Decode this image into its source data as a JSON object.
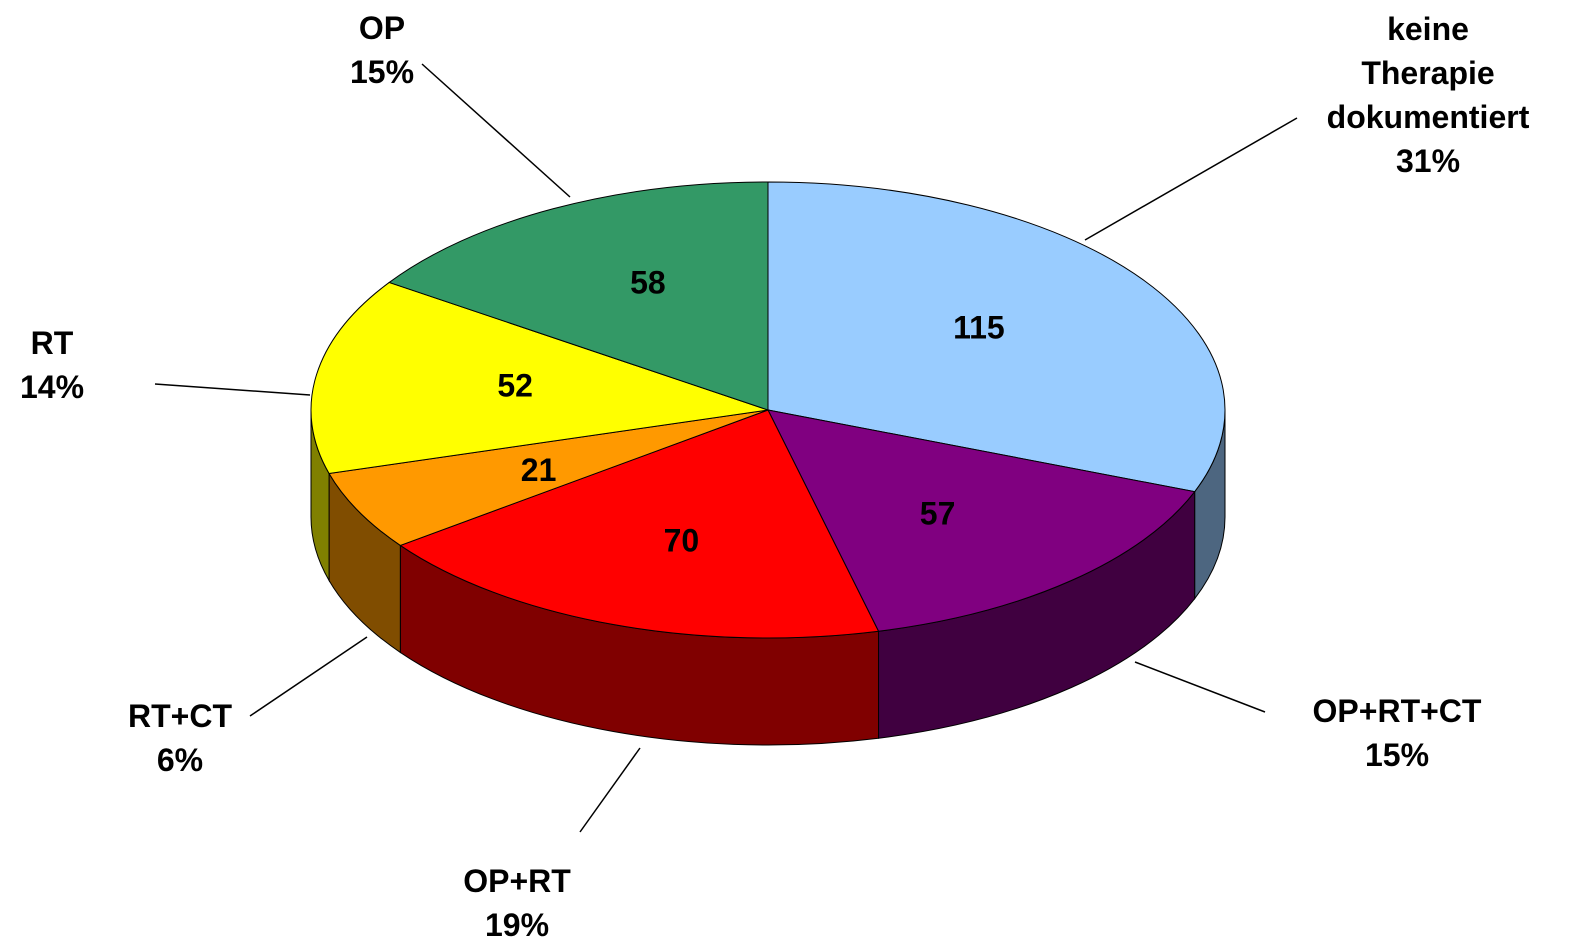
{
  "chart_data": {
    "type": "pie3d",
    "categories": [
      "keine Therapie dokumentiert",
      "OP+RT+CT",
      "OP+RT",
      "RT+CT",
      "RT",
      "OP"
    ],
    "values": [
      115,
      57,
      70,
      21,
      52,
      58
    ],
    "percent_labels": [
      "31%",
      "15%",
      "19%",
      "6%",
      "14%",
      "15%"
    ],
    "colors": [
      "#99ccff",
      "#800080",
      "#ff0000",
      "#ff9900",
      "#ffff00",
      "#339966"
    ]
  }
}
